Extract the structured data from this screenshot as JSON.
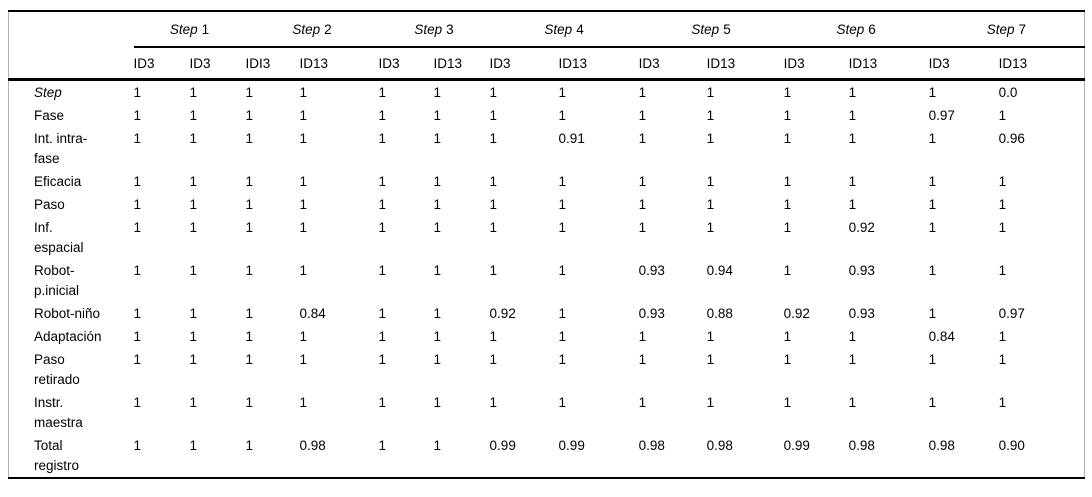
{
  "colors": {
    "rule": "#000000",
    "side_border": "#b3b3b3",
    "text": "#000000",
    "background": "#ffffff"
  },
  "table": {
    "groups": [
      {
        "word": "Step",
        "number": "1"
      },
      {
        "word": "Step",
        "number": "2"
      },
      {
        "word": "Step",
        "number": "3"
      },
      {
        "word": "Step",
        "number": "4"
      },
      {
        "word": "Step",
        "number": "5"
      },
      {
        "word": "Step",
        "number": "6"
      },
      {
        "word": "Step",
        "number": "7"
      }
    ],
    "subheaders": [
      "ID3",
      "ID3",
      "IDI3",
      "ID13",
      "ID3",
      "ID13",
      "ID3",
      "ID13",
      "ID3",
      "ID13",
      "ID3",
      "ID13",
      "ID3",
      "ID13"
    ],
    "rows": [
      {
        "label_lines": [
          "Step"
        ],
        "italic": true,
        "values": [
          "1",
          "1",
          "1",
          "1",
          "1",
          "1",
          "1",
          "1",
          "1",
          "1",
          "1",
          "1",
          "1",
          "0.0"
        ]
      },
      {
        "label_lines": [
          "Fase"
        ],
        "italic": false,
        "values": [
          "1",
          "1",
          "1",
          "1",
          "1",
          "1",
          "1",
          "1",
          "1",
          "1",
          "1",
          "1",
          "0.97",
          "1"
        ]
      },
      {
        "label_lines": [
          "Int. intra-",
          "fase"
        ],
        "italic": false,
        "values": [
          "1",
          "1",
          "1",
          "1",
          "1",
          "1",
          "1",
          "0.91",
          "1",
          "1",
          "1",
          "1",
          "1",
          "0.96"
        ]
      },
      {
        "label_lines": [
          "Eficacia"
        ],
        "italic": false,
        "values": [
          "1",
          "1",
          "1",
          "1",
          "1",
          "1",
          "1",
          "1",
          "1",
          "1",
          "1",
          "1",
          "1",
          "1"
        ]
      },
      {
        "label_lines": [
          "Paso"
        ],
        "italic": false,
        "values": [
          "1",
          "1",
          "1",
          "1",
          "1",
          "1",
          "1",
          "1",
          "1",
          "1",
          "1",
          "1",
          "1",
          "1"
        ]
      },
      {
        "label_lines": [
          "Inf.",
          "espacial"
        ],
        "italic": false,
        "values": [
          "1",
          "1",
          "1",
          "1",
          "1",
          "1",
          "1",
          "1",
          "1",
          "1",
          "1",
          "0.92",
          "1",
          "1"
        ]
      },
      {
        "label_lines": [
          "Robot-",
          "p.inicial"
        ],
        "italic": false,
        "values": [
          "1",
          "1",
          "1",
          "1",
          "1",
          "1",
          "1",
          "1",
          "0.93",
          "0.94",
          "1",
          "0.93",
          "1",
          "1"
        ]
      },
      {
        "label_lines": [
          "Robot-niño"
        ],
        "italic": false,
        "values": [
          "1",
          "1",
          "1",
          "0.84",
          "1",
          "1",
          "0.92",
          "1",
          "0.93",
          "0.88",
          "0.92",
          "0.93",
          "1",
          "0.97"
        ]
      },
      {
        "label_lines": [
          "Adaptación"
        ],
        "italic": false,
        "values": [
          "1",
          "1",
          "1",
          "1",
          "1",
          "1",
          "1",
          "1",
          "1",
          "1",
          "1",
          "1",
          "0.84",
          "1"
        ]
      },
      {
        "label_lines": [
          "Paso",
          "retirado"
        ],
        "italic": false,
        "values": [
          "1",
          "1",
          "1",
          "1",
          "1",
          "1",
          "1",
          "1",
          "1",
          "1",
          "1",
          "1",
          "1",
          "1"
        ]
      },
      {
        "label_lines": [
          "Instr.",
          "maestra"
        ],
        "italic": false,
        "values": [
          "1",
          "1",
          "1",
          "1",
          "1",
          "1",
          "1",
          "1",
          "1",
          "1",
          "1",
          "1",
          "1",
          "1"
        ]
      },
      {
        "label_lines": [
          "Total",
          "registro"
        ],
        "italic": false,
        "values": [
          "1",
          "1",
          "1",
          "0.98",
          "1",
          "1",
          "0.99",
          "0.99",
          "0.98",
          "0.98",
          "0.99",
          "0.98",
          "0.98",
          "0.90"
        ]
      }
    ]
  }
}
